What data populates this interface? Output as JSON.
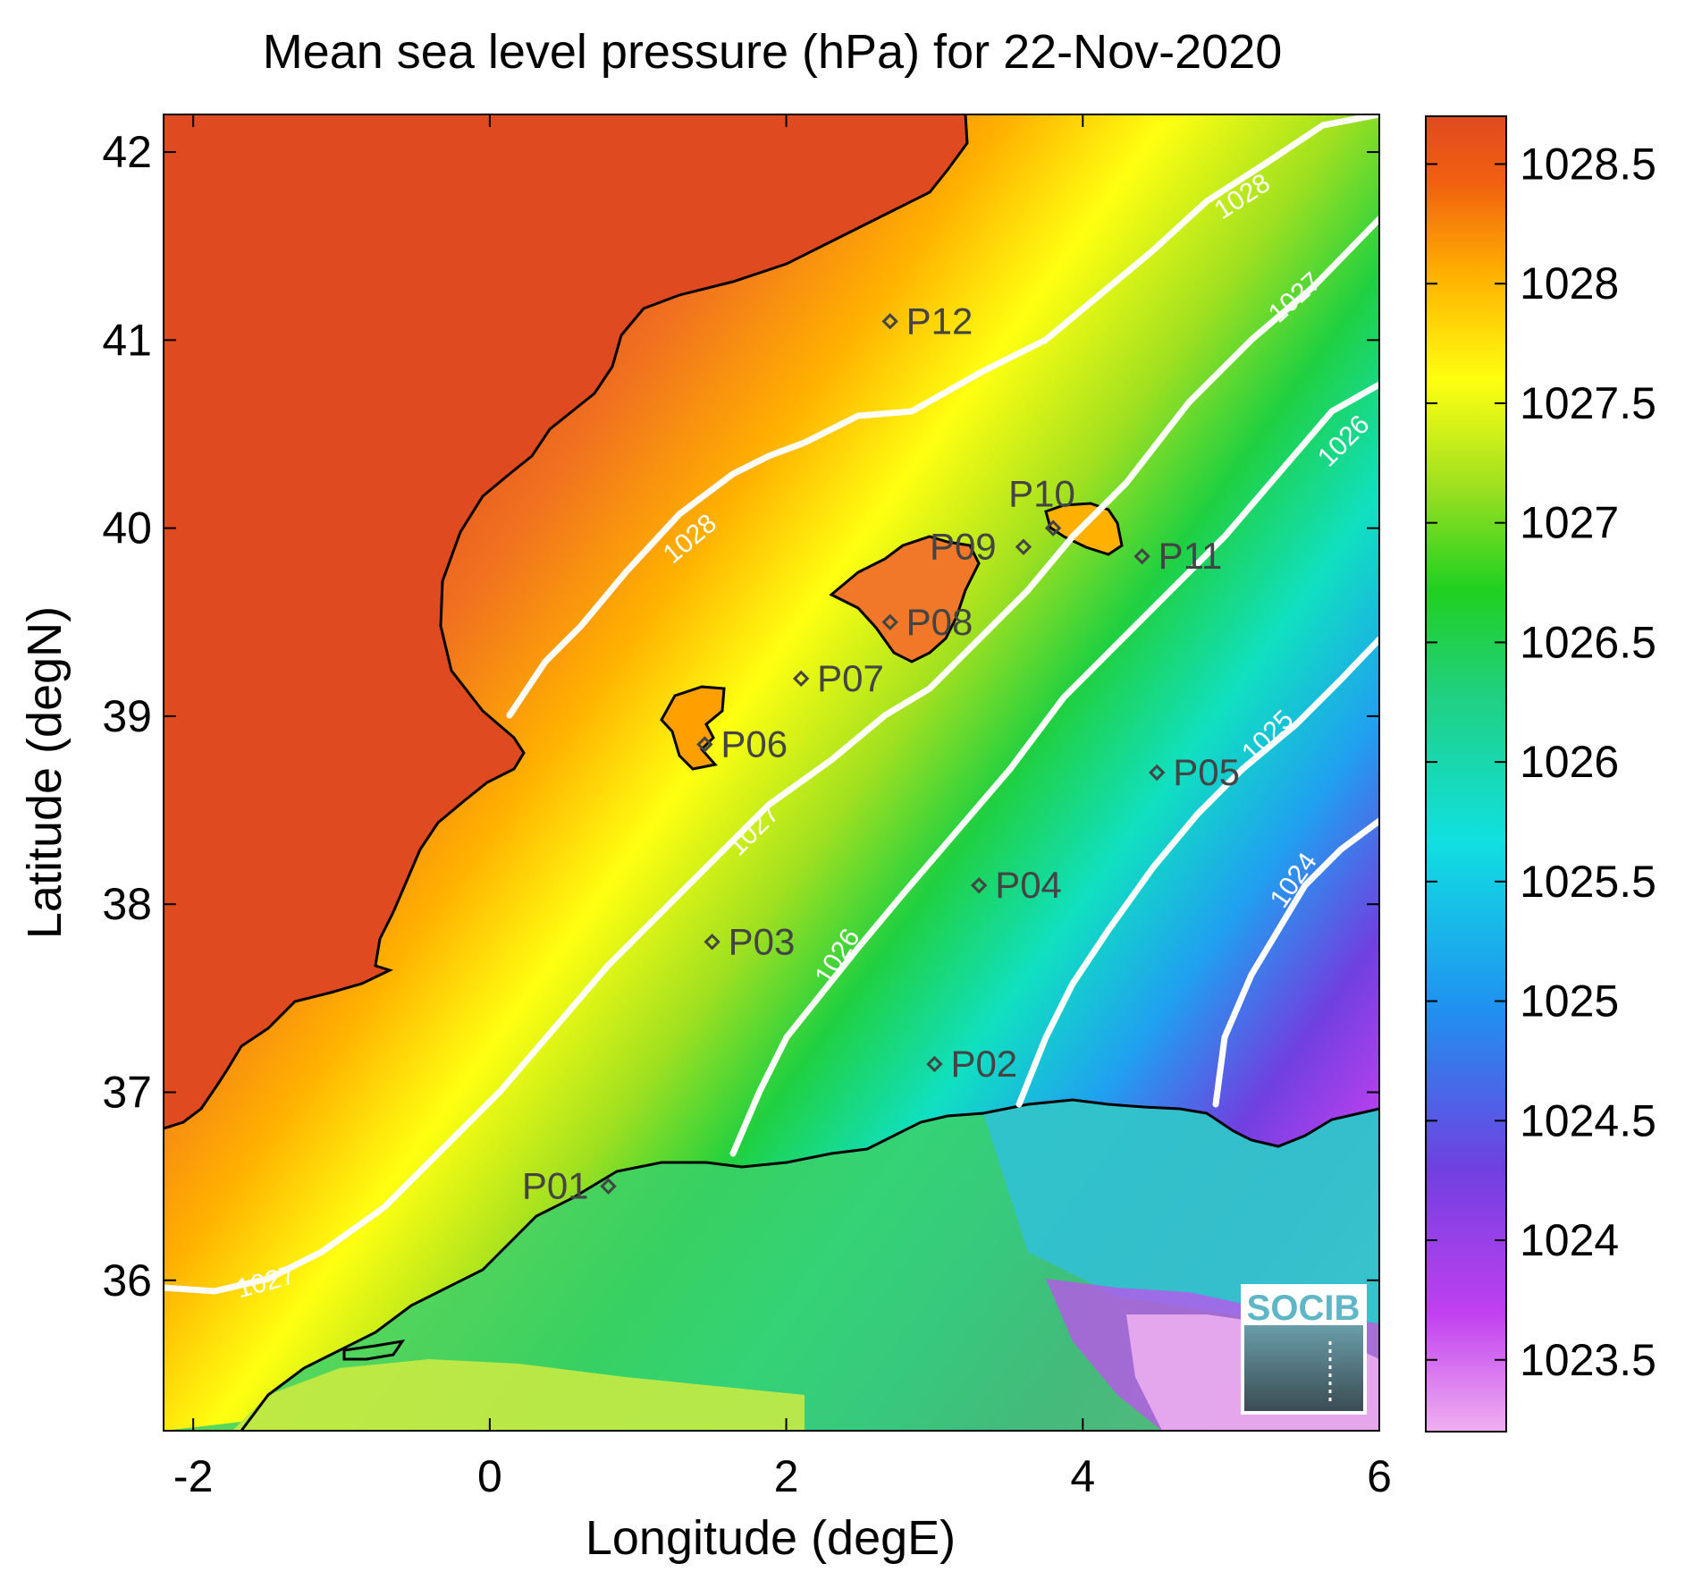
{
  "title": "Mean sea level pressure (hPa) for 22-Nov-2020",
  "x_axis": {
    "label": "Longitude (degE)",
    "range": [
      -2.2,
      6.0
    ],
    "ticks": [
      -2,
      0,
      2,
      4,
      6
    ],
    "tick_labels": [
      "-2",
      "0",
      "2",
      "4",
      "6"
    ]
  },
  "y_axis": {
    "label": "Latitude (degN)",
    "range": [
      35.2,
      42.2
    ],
    "ticks": [
      36,
      37,
      38,
      39,
      40,
      41,
      42
    ],
    "tick_labels": [
      "36",
      "37",
      "38",
      "39",
      "40",
      "41",
      "42"
    ]
  },
  "colorbar": {
    "range": [
      1023.2,
      1028.7
    ],
    "ticks": [
      1023.5,
      1024,
      1024.5,
      1025,
      1025.5,
      1026,
      1026.5,
      1027,
      1027.5,
      1028,
      1028.5
    ],
    "tick_labels": [
      "1023.5",
      "1024",
      "1024.5",
      "1025",
      "1025.5",
      "1026",
      "1026.5",
      "1027",
      "1027.5",
      "1028",
      "1028.5"
    ],
    "colormap": [
      "#f0b0f0",
      "#c040f0",
      "#7040e0",
      "#2090f0",
      "#10e0e0",
      "#20d080",
      "#20d020",
      "#a0e020",
      "#ffff10",
      "#ffb000",
      "#f06010",
      "#e04a20"
    ]
  },
  "contour_labels": [
    "1028",
    "1028",
    "1027",
    "1027",
    "1027",
    "1026",
    "1026",
    "1025",
    "1024"
  ],
  "stations": [
    {
      "id": "P01",
      "lon": 0.8,
      "lat": 36.5
    },
    {
      "id": "P02",
      "lon": 3.0,
      "lat": 37.15
    },
    {
      "id": "P03",
      "lon": 1.5,
      "lat": 37.8
    },
    {
      "id": "P04",
      "lon": 3.3,
      "lat": 38.1
    },
    {
      "id": "P05",
      "lon": 4.5,
      "lat": 38.7
    },
    {
      "id": "P06",
      "lon": 1.45,
      "lat": 38.85
    },
    {
      "id": "P07",
      "lon": 2.1,
      "lat": 39.2
    },
    {
      "id": "P08",
      "lon": 2.7,
      "lat": 39.5
    },
    {
      "id": "P09",
      "lon": 3.6,
      "lat": 39.9
    },
    {
      "id": "P10",
      "lon": 3.8,
      "lat": 40.0
    },
    {
      "id": "P11",
      "lon": 4.4,
      "lat": 39.85
    },
    {
      "id": "P12",
      "lon": 2.7,
      "lat": 41.1
    }
  ],
  "logo": {
    "text": "SOCIB",
    "color": "#5fb6c6"
  },
  "contour_line_color": "#ffffff",
  "coastline_color": "#000000"
}
